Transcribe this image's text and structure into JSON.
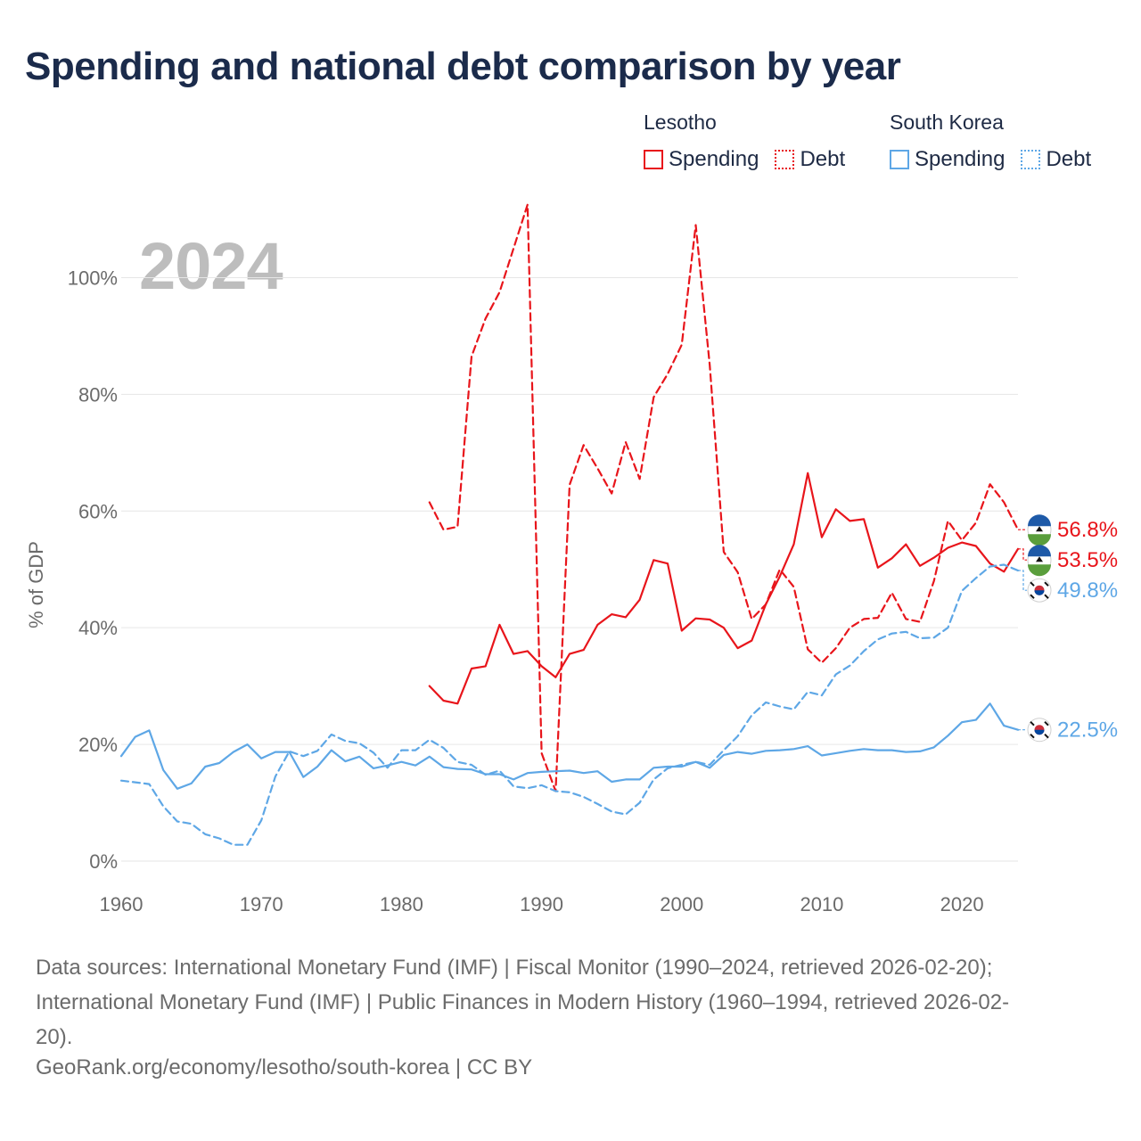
{
  "title": "Spending and national debt comparison by year",
  "current_year": "2024",
  "legend": {
    "groups": [
      {
        "name": "Lesotho",
        "spending_label": "Spending",
        "debt_label": "Debt"
      },
      {
        "name": "South Korea",
        "spending_label": "Spending",
        "debt_label": "Debt"
      }
    ]
  },
  "colors": {
    "lesotho": "#e8151b",
    "south_korea": "#5ea7e6",
    "grid": "#e6e6e6",
    "axis_text": "#6b6b6b"
  },
  "footer": {
    "source_line1": "Data sources: International Monetary Fund (IMF) | Fiscal Monitor (1990–2024, retrieved 2026-02-20);",
    "source_line2": "International Monetary Fund (IMF) | Public Finances in Modern History (1960–1994, retrieved 2026-02-",
    "source_line3": "20).",
    "url": "GeoRank.org/economy/lesotho/south-korea | CC BY"
  },
  "chart_data": {
    "type": "line",
    "title": "Spending and national debt comparison by year",
    "xlabel": "",
    "ylabel": "% of GDP",
    "xlim": [
      1960,
      2024
    ],
    "ylim": [
      0,
      110
    ],
    "xticks": [
      1960,
      1970,
      1980,
      1990,
      2000,
      2010,
      2020
    ],
    "yticks": [
      0,
      20,
      40,
      60,
      80,
      100
    ],
    "ytick_labels": [
      "0%",
      "20%",
      "40%",
      "60%",
      "80%",
      "100%"
    ],
    "grid": true,
    "series": [
      {
        "name": "Lesotho Spending",
        "country": "Lesotho",
        "metric": "Spending",
        "style": "solid",
        "color": "#e8151b",
        "end_label": "53.5%",
        "start_year": 1982,
        "values": [
          30.0,
          27.5,
          27.0,
          33.0,
          33.4,
          40.5,
          35.5,
          36.0,
          33.4,
          31.5,
          35.5,
          36.2,
          40.5,
          42.3,
          41.8,
          44.8,
          51.6,
          51.0,
          39.5,
          41.6,
          41.4,
          40.0,
          36.5,
          37.8,
          44.0,
          48.8,
          54.3,
          66.5,
          55.5,
          60.3,
          58.3,
          58.6,
          50.3,
          51.9,
          54.3,
          50.6,
          52.0,
          53.7,
          54.6,
          54.0,
          51.0,
          49.6,
          53.5
        ]
      },
      {
        "name": "Lesotho Debt",
        "country": "Lesotho",
        "metric": "Debt",
        "style": "dashed",
        "color": "#e8151b",
        "end_label": "56.8%",
        "start_year": 1982,
        "values": [
          61.5,
          56.8,
          57.3,
          86.5,
          93.0,
          97.5,
          105.0,
          112.5,
          18.5,
          12.0,
          64.5,
          71.3,
          67.3,
          63.0,
          71.8,
          65.5,
          79.5,
          83.5,
          88.5,
          109.0,
          85.0,
          53.0,
          49.5,
          41.5,
          44.0,
          50.0,
          47.0,
          36.3,
          34.0,
          36.5,
          40.0,
          41.5,
          41.7,
          46.0,
          41.5,
          41.0,
          48.0,
          58.3,
          55.0,
          58.0,
          64.6,
          61.5,
          56.8
        ]
      },
      {
        "name": "South Korea Spending",
        "country": "South Korea",
        "metric": "Spending",
        "style": "solid",
        "color": "#5ea7e6",
        "end_label": "22.5%",
        "start_year": 1960,
        "values": [
          18.0,
          21.3,
          22.4,
          15.6,
          12.4,
          13.3,
          16.2,
          16.8,
          18.7,
          20.0,
          17.6,
          18.7,
          18.7,
          14.4,
          16.2,
          19.0,
          17.1,
          17.9,
          15.9,
          16.4,
          17.0,
          16.4,
          17.9,
          16.1,
          15.8,
          15.7,
          14.9,
          14.9,
          14.0,
          15.1,
          15.3,
          15.4,
          15.5,
          15.1,
          15.4,
          13.6,
          14.0,
          14.0,
          16.0,
          16.2,
          16.2,
          17.0,
          16.0,
          18.2,
          18.7,
          18.4,
          18.9,
          19.0,
          19.2,
          19.7,
          18.1,
          18.5,
          18.9,
          19.2,
          19.0,
          19.0,
          18.7,
          18.8,
          19.5,
          21.5,
          23.8,
          24.2,
          27.0,
          23.2,
          22.5
        ]
      },
      {
        "name": "South Korea Debt",
        "country": "South Korea",
        "metric": "Debt",
        "style": "dashed",
        "color": "#5ea7e6",
        "end_label": "49.8%",
        "start_year": 1960,
        "values": [
          13.8,
          13.5,
          13.2,
          9.4,
          6.8,
          6.4,
          4.6,
          3.9,
          2.8,
          2.8,
          7.0,
          14.5,
          18.8,
          18.0,
          18.9,
          21.7,
          20.6,
          20.2,
          18.6,
          16.0,
          19.0,
          19.0,
          20.8,
          19.4,
          17.0,
          16.5,
          14.8,
          15.5,
          12.8,
          12.5,
          13.0,
          12.0,
          11.8,
          11.0,
          9.8,
          8.5,
          8.0,
          10.0,
          14.0,
          15.9,
          16.5,
          17.0,
          16.5,
          19.0,
          21.4,
          25.0,
          27.2,
          26.5,
          26.0,
          29.0,
          28.4,
          32.0,
          33.5,
          36.0,
          38.0,
          39.0,
          39.3,
          38.2,
          38.3,
          40.0,
          46.3,
          48.5,
          50.5,
          50.8,
          49.8
        ]
      }
    ]
  }
}
